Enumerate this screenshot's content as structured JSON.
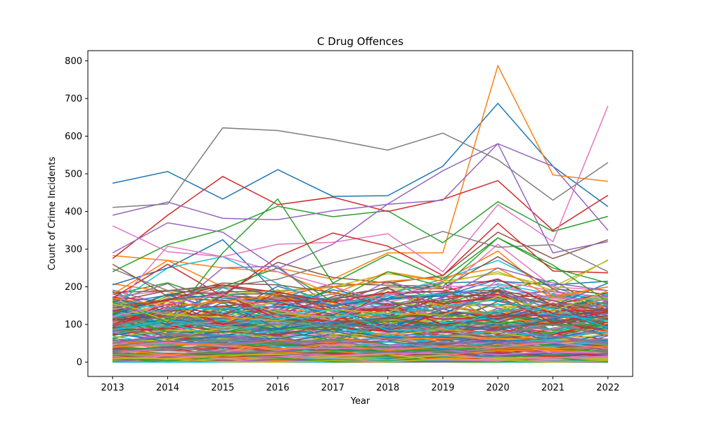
{
  "chart_data": {
    "type": "line",
    "title": "C Drug Offences",
    "xlabel": "Year",
    "ylabel": "Count of Crime Incidents",
    "x": [
      2013,
      2014,
      2015,
      2016,
      2017,
      2018,
      2019,
      2020,
      2021,
      2022
    ],
    "xlim": [
      2012.55,
      2022.45
    ],
    "ylim": [
      -38,
      827
    ],
    "yticks": [
      0,
      100,
      200,
      300,
      400,
      500,
      600,
      700,
      800
    ],
    "grid": false,
    "legend": "none",
    "palette": [
      "#1f77b4",
      "#ff7f0e",
      "#2ca02c",
      "#d62728",
      "#9467bd",
      "#8c564b",
      "#e377c2",
      "#7f7f7f",
      "#bcbd22",
      "#17becf"
    ],
    "series": [
      {
        "values": [
          475,
          506,
          433,
          511,
          440,
          442,
          520,
          687,
          520,
          413
        ]
      },
      {
        "values": [
          283,
          270,
          200,
          250,
          220,
          290,
          290,
          787,
          497,
          480
        ]
      },
      {
        "values": [
          240,
          312,
          352,
          414,
          386,
          402,
          317,
          426,
          347,
          387
        ]
      },
      {
        "values": [
          275,
          390,
          493,
          418,
          438,
          400,
          432,
          482,
          350,
          443
        ]
      },
      {
        "values": [
          390,
          425,
          382,
          378,
          402,
          419,
          430,
          580,
          520,
          350
        ]
      },
      {
        "values": [
          185,
          190,
          180,
          265,
          225,
          210,
          230,
          345,
          275,
          325
        ]
      },
      {
        "values": [
          362,
          293,
          280,
          313,
          318,
          341,
          240,
          418,
          320,
          680
        ]
      },
      {
        "values": [
          411,
          420,
          622,
          615,
          591,
          563,
          608,
          537,
          430,
          530
        ]
      },
      {
        "values": [
          140,
          160,
          180,
          190,
          200,
          235,
          215,
          235,
          200,
          270
        ]
      },
      {
        "values": [
          150,
          250,
          280,
          208,
          150,
          180,
          220,
          270,
          200,
          150
        ]
      },
      {
        "values": [
          205,
          250,
          325,
          180,
          150,
          170,
          210,
          215,
          205,
          215
        ]
      },
      {
        "values": [
          180,
          270,
          250,
          240,
          180,
          240,
          215,
          295,
          175,
          200
        ]
      },
      {
        "values": [
          130,
          180,
          200,
          250,
          160,
          240,
          200,
          330,
          250,
          210
        ]
      },
      {
        "values": [
          170,
          260,
          175,
          280,
          343,
          308,
          230,
          369,
          242,
          237
        ]
      },
      {
        "values": [
          290,
          370,
          345,
          248,
          313,
          420,
          508,
          580,
          290,
          320
        ]
      },
      {
        "values": [
          160,
          190,
          205,
          175,
          165,
          200,
          196,
          280,
          195,
          180
        ]
      },
      {
        "values": [
          140,
          308,
          280,
          240,
          200,
          160,
          186,
          313,
          200,
          190
        ]
      },
      {
        "values": [
          248,
          190,
          200,
          220,
          264,
          298,
          347,
          305,
          312,
          240
        ]
      },
      {
        "values": [
          160,
          110,
          180,
          130,
          120,
          130,
          210,
          240,
          190,
          272
        ]
      },
      {
        "values": [
          150,
          145,
          140,
          150,
          135,
          175,
          180,
          200,
          170,
          180
        ]
      },
      {
        "values": [
          125,
          180,
          170,
          160,
          126,
          170,
          175,
          220,
          150,
          210
        ]
      },
      {
        "values": [
          170,
          150,
          160,
          180,
          200,
          215,
          225,
          250,
          170,
          200
        ]
      },
      {
        "values": [
          160,
          105,
          290,
          433,
          210,
          285,
          220,
          330,
          258,
          160
        ]
      },
      {
        "values": [
          135,
          165,
          205,
          185,
          160,
          185,
          188,
          221,
          151,
          185
        ]
      },
      {
        "values": [
          145,
          130,
          250,
          255,
          140,
          150,
          170,
          250,
          210,
          190
        ]
      },
      {
        "values": [
          260,
          175,
          210,
          205,
          185,
          150,
          165,
          190,
          150,
          140
        ]
      },
      {
        "values": [
          120,
          155,
          180,
          140,
          110,
          180,
          200,
          205,
          170,
          165
        ]
      },
      {
        "values": [
          100,
          120,
          95,
          128,
          92,
          130,
          140,
          170,
          155,
          150
        ]
      },
      {
        "values": [
          155,
          125,
          120,
          110,
          140,
          130,
          125,
          175,
          135,
          190
        ]
      },
      {
        "values": [
          118,
          140,
          145,
          115,
          120,
          128,
          150,
          165,
          125,
          110
        ]
      }
    ],
    "background_lines": 240,
    "background_range": [
      0,
      170
    ]
  }
}
